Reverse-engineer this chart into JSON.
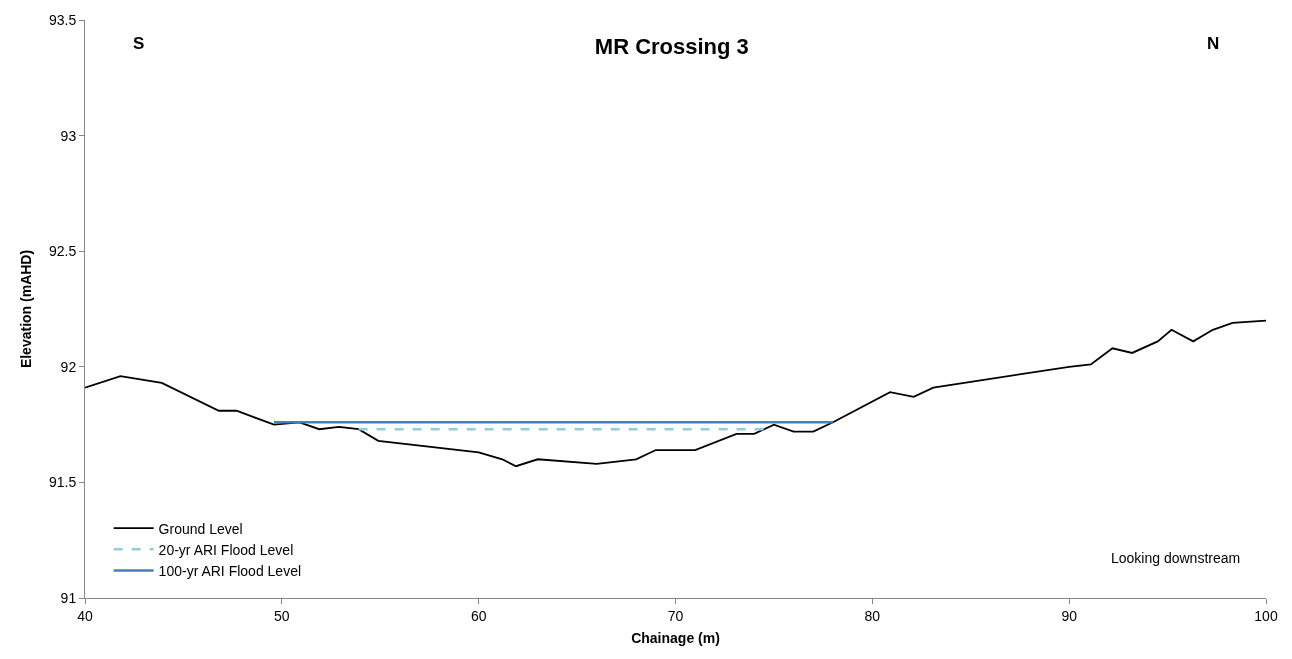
{
  "chart_data": {
    "type": "line",
    "title": "MR Crossing 3",
    "xlabel": "Chainage (m)",
    "ylabel": "Elevation (mAHD)",
    "annotations": [
      "S",
      "N",
      "Looking downstream"
    ],
    "xlim": [
      40,
      100
    ],
    "xticks": [
      40,
      50,
      60,
      70,
      80,
      90,
      100
    ],
    "ylim": [
      91,
      93.5
    ],
    "yticks": [
      91,
      91.5,
      92,
      92.5,
      93,
      93.5
    ],
    "grid": false,
    "legend": "bottom left",
    "marker": "none",
    "series": [
      {
        "name": "Ground Level",
        "color": "#000000",
        "line_style": "solid",
        "x": [
          40,
          41.8,
          43.9,
          46.8,
          47.7,
          49.6,
          50.9,
          51.9,
          52.9,
          53.9,
          54.9,
          60.0,
          61.2,
          61.9,
          63.0,
          66.0,
          68.0,
          69.0,
          71.0,
          73.1,
          74.0,
          75.0,
          76.0,
          77.0,
          78.0,
          80.9,
          82.1,
          83.1,
          90.0,
          91.1,
          92.2,
          93.2,
          94.5,
          95.2,
          96.3,
          97.3,
          98.3,
          100
        ],
        "values": [
          91.91,
          91.96,
          91.93,
          91.81,
          91.81,
          91.75,
          91.76,
          91.73,
          91.74,
          91.73,
          91.68,
          91.63,
          91.6,
          91.57,
          91.6,
          91.58,
          91.6,
          91.64,
          91.64,
          91.71,
          91.71,
          91.75,
          91.72,
          91.72,
          91.76,
          91.89,
          91.87,
          91.91,
          92.0,
          92.01,
          92.08,
          92.06,
          92.11,
          92.16,
          92.11,
          92.16,
          92.19,
          92.2
        ]
      },
      {
        "name": "20-yr ARI Flood Level",
        "color": "#92cddc",
        "line_style": "dashed",
        "x": [
          53.9,
          74.5
        ],
        "values": [
          91.73,
          91.73
        ]
      },
      {
        "name": "100-yr ARI Flood Level",
        "color": "#4a7ebb",
        "line_style": "solid",
        "x": [
          49.6,
          78.0
        ],
        "values": [
          91.76,
          91.76
        ]
      }
    ]
  }
}
